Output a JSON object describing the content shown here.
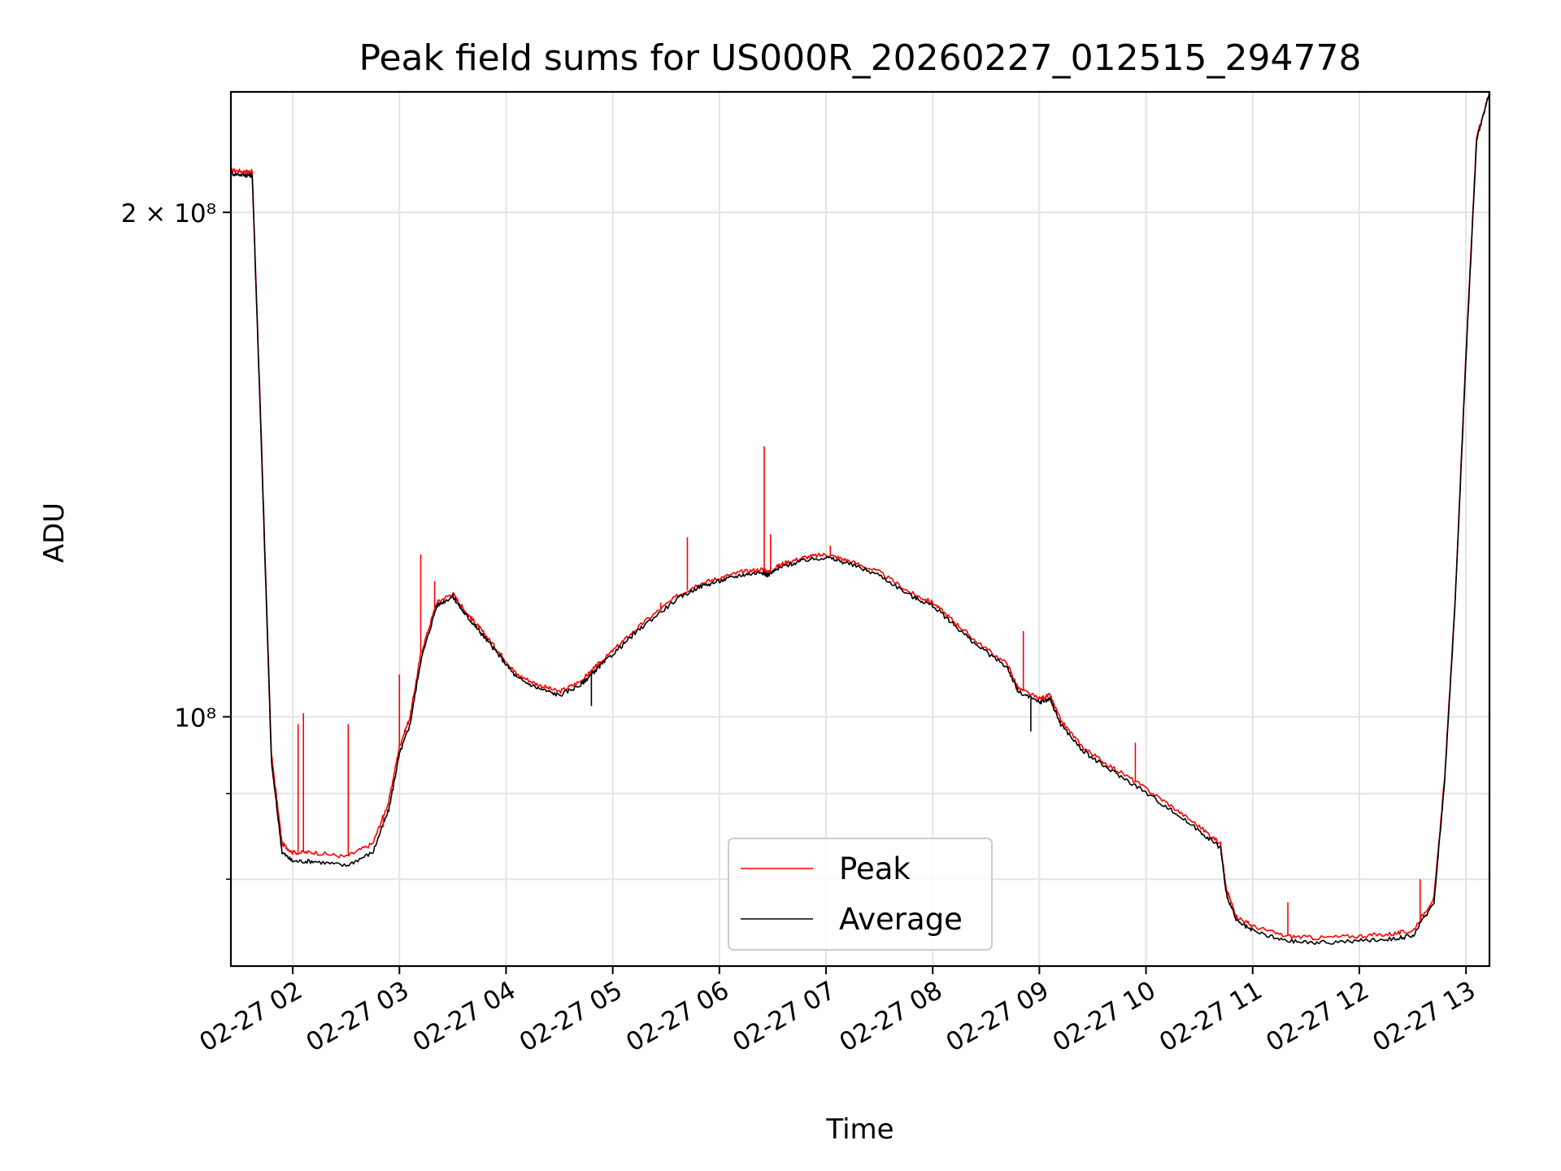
{
  "chart_data": {
    "type": "line",
    "title": "Peak field sums for US000R_20260227_012515_294778",
    "xlabel": "Time",
    "ylabel": "ADU",
    "yscale": "log",
    "grid": true,
    "legend_position": "lower-center",
    "xlim_hours": [
      1.42,
      13.22
    ],
    "ylim": [
      71000000,
      236000000
    ],
    "x_tick_labels": [
      "02-27 02",
      "02-27 03",
      "02-27 04",
      "02-27 05",
      "02-27 06",
      "02-27 07",
      "02-27 08",
      "02-27 09",
      "02-27 10",
      "02-27 11",
      "02-27 12",
      "02-27 13"
    ],
    "y_tick_labels": [
      {
        "value": 200000000,
        "label": "2 × 10⁸"
      },
      {
        "value": 100000000,
        "label": "10⁸"
      }
    ],
    "y_minor_ticks": [
      80000000,
      90000000
    ],
    "x_hours": [
      1.42,
      1.55,
      1.62,
      1.7,
      1.8,
      1.9,
      2.0,
      2.2,
      2.5,
      2.75,
      2.9,
      3.0,
      3.1,
      3.2,
      3.35,
      3.5,
      3.6,
      3.7,
      3.8,
      3.95,
      4.1,
      4.3,
      4.5,
      4.7,
      4.8,
      4.9,
      5.1,
      5.3,
      5.6,
      5.8,
      6.0,
      6.2,
      6.4,
      6.45,
      6.6,
      6.8,
      7.0,
      7.2,
      7.5,
      7.8,
      8.0,
      8.2,
      8.4,
      8.7,
      8.8,
      9.0,
      9.1,
      9.2,
      9.4,
      9.6,
      9.9,
      10.2,
      10.5,
      10.7,
      10.75,
      10.85,
      11.0,
      11.3,
      11.6,
      12.0,
      12.3,
      12.5,
      12.7,
      12.8,
      12.9,
      13.0,
      13.1,
      13.22
    ],
    "series": [
      {
        "name": "Peak",
        "color": "#ff0000",
        "values": [
          212000000,
          211500000,
          211500000,
          150000000,
          95000000,
          84000000,
          83000000,
          83000000,
          82500000,
          84000000,
          89000000,
          96000000,
          100000000,
          109000000,
          117000000,
          118500000,
          116000000,
          114000000,
          112000000,
          109000000,
          106000000,
          104500000,
          103500000,
          105000000,
          106500000,
          108000000,
          111000000,
          114000000,
          118000000,
          120000000,
          121000000,
          122000000,
          122500000,
          122000000,
          123500000,
          124500000,
          125000000,
          124000000,
          122000000,
          118500000,
          117000000,
          114000000,
          111000000,
          107500000,
          104000000,
          102500000,
          103000000,
          99500000,
          96000000,
          94000000,
          91500000,
          88800000,
          86000000,
          84000000,
          79000000,
          76000000,
          75000000,
          74000000,
          73800000,
          74000000,
          74200000,
          74500000,
          78000000,
          92000000,
          118000000,
          165000000,
          222000000,
          236000000
        ]
      },
      {
        "name": "Average",
        "color": "#000000",
        "values": [
          211000000,
          210500000,
          210500000,
          149000000,
          94000000,
          83000000,
          82000000,
          82000000,
          81500000,
          83000000,
          88000000,
          95000000,
          99000000,
          108000000,
          116500000,
          118000000,
          115500000,
          113500000,
          111500000,
          108500000,
          105500000,
          104000000,
          103000000,
          104500000,
          106000000,
          107500000,
          110500000,
          113500000,
          117500000,
          119500000,
          120500000,
          121500000,
          122000000,
          121500000,
          123000000,
          124000000,
          124500000,
          123500000,
          121500000,
          118000000,
          116500000,
          113500000,
          110500000,
          107000000,
          103500000,
          102000000,
          102500000,
          99000000,
          95500000,
          93500000,
          91000000,
          88300000,
          85500000,
          83500000,
          78500000,
          75500000,
          74500000,
          73500000,
          73300000,
          73500000,
          73700000,
          74000000,
          77500000,
          91500000,
          117500000,
          164000000,
          221000000,
          236000000
        ]
      }
    ],
    "spikes": [
      {
        "series": "Peak",
        "x_hour": 2.05,
        "y": 99000000
      },
      {
        "series": "Peak",
        "x_hour": 2.1,
        "y": 100500000
      },
      {
        "series": "Peak",
        "x_hour": 2.52,
        "y": 99000000
      },
      {
        "series": "Peak",
        "x_hour": 2.85,
        "y": 86000000
      },
      {
        "series": "Peak",
        "x_hour": 3.0,
        "y": 106000000
      },
      {
        "series": "Peak",
        "x_hour": 3.2,
        "y": 125000000
      },
      {
        "series": "Peak",
        "x_hour": 3.33,
        "y": 120500000
      },
      {
        "series": "Peak",
        "x_hour": 5.45,
        "y": 117000000
      },
      {
        "series": "Peak",
        "x_hour": 5.7,
        "y": 128000000
      },
      {
        "series": "Peak",
        "x_hour": 6.42,
        "y": 145000000
      },
      {
        "series": "Peak",
        "x_hour": 6.48,
        "y": 128500000
      },
      {
        "series": "Peak",
        "x_hour": 7.04,
        "y": 126500000
      },
      {
        "series": "Peak",
        "x_hour": 8.85,
        "y": 112500000
      },
      {
        "series": "Peak",
        "x_hour": 9.9,
        "y": 96500000
      },
      {
        "series": "Peak",
        "x_hour": 11.33,
        "y": 77500000
      },
      {
        "series": "Peak",
        "x_hour": 12.57,
        "y": 80000000
      },
      {
        "series": "Average",
        "x_hour": 4.8,
        "y": 101500000
      },
      {
        "series": "Average",
        "x_hour": 8.92,
        "y": 98000000
      }
    ]
  }
}
